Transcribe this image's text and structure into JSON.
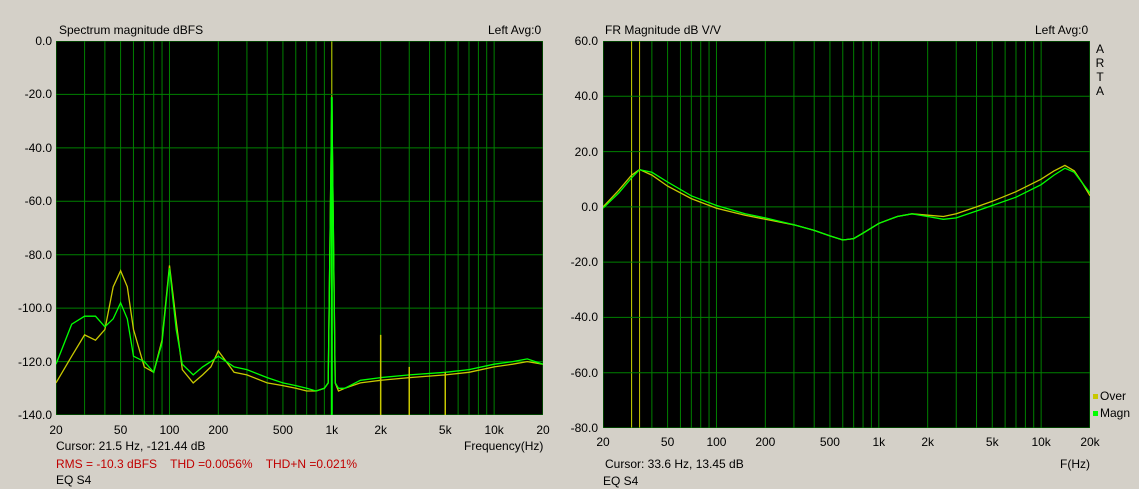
{
  "left": {
    "title": "Spectrum magnitude dBFS",
    "avg": "Left  Avg:0",
    "y_ticks": [
      "0.0",
      "-20.0",
      "-40.0",
      "-60.0",
      "-80.0",
      "-100.0",
      "-120.0",
      "-140.0"
    ],
    "x_ticks": [
      "20",
      "50",
      "100",
      "200",
      "500",
      "1k",
      "2k",
      "5k",
      "10k",
      "20"
    ],
    "x_unit": "Frequency(Hz)",
    "cursor": "Cursor:    21.5 Hz, -121.44 dB",
    "rms": "RMS =  -10.3 dBFS",
    "thd": "THD =0.0056%",
    "thdn": "THD+N =0.021%",
    "eq": "EQ S4"
  },
  "right": {
    "title": "FR Magnitude dB V/V",
    "avg": "Left  Avg:0",
    "y_ticks": [
      "60.0",
      "40.0",
      "20.0",
      "0.0",
      "-20.0",
      "-40.0",
      "-60.0",
      "-80.0"
    ],
    "x_ticks": [
      "20",
      "50",
      "100",
      "200",
      "500",
      "1k",
      "2k",
      "5k",
      "10k",
      "20k"
    ],
    "x_unit": "F(Hz)",
    "cursor": "Cursor:   33.6 Hz, 13.45 dB",
    "eq": "EQ S4",
    "arta": [
      "A",
      "R",
      "T",
      "A"
    ],
    "legend": [
      {
        "name": "Over",
        "color": "#c8c800"
      },
      {
        "name": "Magn",
        "color": "#00ff00"
      }
    ]
  },
  "colors": {
    "background": "#d4d0c8",
    "plot_bg": "#000000",
    "grid": "#008000",
    "trace_green": "#00ff00",
    "trace_yellow": "#c8c800",
    "stats_text": "#c00000"
  },
  "chart_data": [
    {
      "type": "line",
      "title": "Spectrum magnitude dBFS",
      "xlabel": "Frequency(Hz)",
      "ylabel": "",
      "xscale": "log",
      "xlim": [
        20,
        20000
      ],
      "ylim": [
        -140,
        0
      ],
      "grid": true,
      "tone": {
        "freq": 1000,
        "level": -21
      },
      "harmonics": [
        {
          "freq": 2000,
          "level": -110
        },
        {
          "freq": 3000,
          "level": -122
        },
        {
          "freq": 5000,
          "level": -124
        }
      ],
      "series": [
        {
          "name": "Over",
          "color": "#c8c800",
          "x": [
            20,
            25,
            30,
            35,
            40,
            45,
            50,
            55,
            60,
            70,
            80,
            90,
            100,
            110,
            120,
            140,
            160,
            180,
            200,
            250,
            300,
            400,
            500,
            600,
            700,
            800,
            900,
            950,
            1000,
            1050,
            1100,
            1200,
            1500,
            2000,
            3000,
            5000,
            7000,
            10000,
            13000,
            16000,
            20000
          ],
          "y": [
            -128,
            -118,
            -110,
            -112,
            -108,
            -92,
            -86,
            -92,
            -108,
            -122,
            -124,
            -112,
            -84,
            -105,
            -123,
            -128,
            -125,
            -122,
            -116,
            -124,
            -125,
            -128,
            -129,
            -130,
            -131,
            -131,
            -130,
            -128,
            -21,
            -128,
            -131,
            -130,
            -128,
            -127,
            -126,
            -125,
            -124,
            -122,
            -121,
            -120,
            -121
          ]
        },
        {
          "name": "Magn",
          "color": "#00ff00",
          "x": [
            20,
            25,
            30,
            35,
            40,
            45,
            50,
            55,
            60,
            70,
            80,
            90,
            100,
            110,
            120,
            140,
            160,
            180,
            200,
            250,
            300,
            400,
            500,
            600,
            700,
            800,
            900,
            950,
            1000,
            1050,
            1100,
            1200,
            1500,
            2000,
            3000,
            5000,
            7000,
            10000,
            13000,
            16000,
            20000
          ],
          "y": [
            -121,
            -106,
            -103,
            -103,
            -107,
            -104,
            -98,
            -104,
            -118,
            -120,
            -124,
            -113,
            -85,
            -108,
            -121,
            -125,
            -122,
            -120,
            -118,
            -122,
            -123,
            -126,
            -128,
            -129,
            -130,
            -131,
            -130,
            -128,
            -21,
            -128,
            -130,
            -130,
            -127,
            -126,
            -125,
            -124,
            -123,
            -121,
            -120,
            -119,
            -121
          ]
        }
      ]
    },
    {
      "type": "line",
      "title": "FR Magnitude dB V/V",
      "xlabel": "F(Hz)",
      "ylabel": "",
      "xscale": "log",
      "xlim": [
        20,
        20000
      ],
      "ylim": [
        -80,
        60
      ],
      "grid": true,
      "legend": "bottom-right",
      "series": [
        {
          "name": "Over",
          "color": "#c8c800",
          "x": [
            20,
            25,
            30,
            33.6,
            40,
            50,
            70,
            100,
            150,
            200,
            300,
            400,
            500,
            600,
            700,
            800,
            1000,
            1300,
            1600,
            2000,
            2500,
            3000,
            4000,
            5000,
            7000,
            10000,
            12000,
            14000,
            16000,
            18000,
            20000
          ],
          "y": [
            0,
            6,
            11.5,
            13.5,
            11.5,
            7.5,
            3,
            -0.5,
            -3,
            -4.5,
            -6.5,
            -8.5,
            -10.5,
            -12,
            -11.5,
            -9.5,
            -6,
            -3.5,
            -2.5,
            -3,
            -3.5,
            -2.5,
            0,
            2,
            5.5,
            10,
            13,
            15,
            13,
            8.5,
            4
          ]
        },
        {
          "name": "Magn",
          "color": "#00ff00",
          "x": [
            20,
            25,
            30,
            33.6,
            40,
            50,
            70,
            100,
            150,
            200,
            300,
            400,
            500,
            600,
            700,
            800,
            1000,
            1300,
            1600,
            2000,
            2500,
            3000,
            4000,
            5000,
            7000,
            10000,
            12000,
            14000,
            16000,
            18000,
            20000
          ],
          "y": [
            -0.5,
            5,
            10.5,
            13.45,
            12.5,
            9,
            4,
            0.5,
            -2.5,
            -4,
            -6.5,
            -8.5,
            -10.5,
            -12,
            -11.5,
            -9.5,
            -6,
            -3.5,
            -2.5,
            -3.5,
            -4.5,
            -4,
            -1.5,
            0.5,
            3.5,
            8,
            11.5,
            14,
            12.5,
            8.5,
            5
          ]
        }
      ]
    }
  ]
}
